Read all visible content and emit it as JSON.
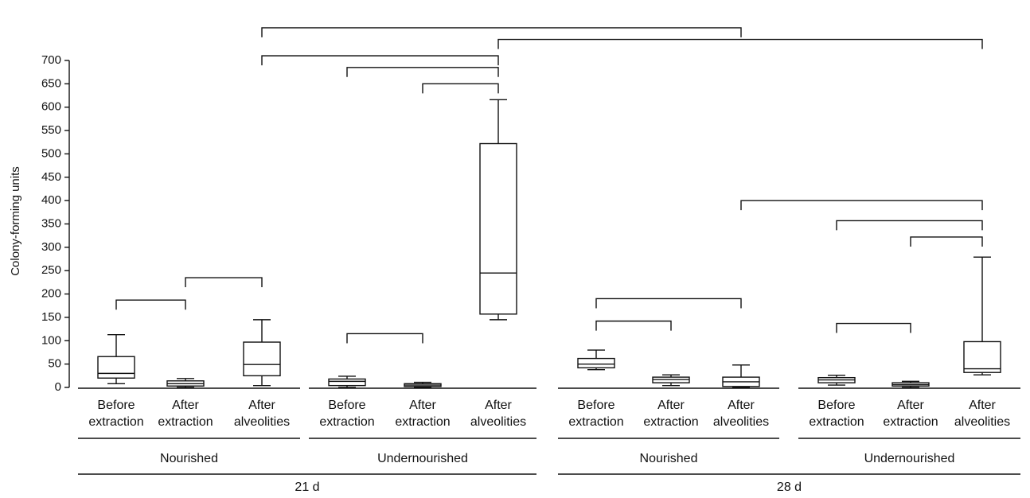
{
  "chart_data": {
    "type": "box",
    "ylabel": "Colony-forming units",
    "ylim": [
      0,
      700
    ],
    "yticks": [
      0,
      50,
      100,
      150,
      200,
      250,
      300,
      350,
      400,
      450,
      500,
      550,
      600,
      650,
      700
    ],
    "grid": false,
    "panels": [
      {
        "time": "21 d",
        "groups": [
          {
            "group": "Nourished",
            "boxes": [
              {
                "category": [
                  "Before",
                  "extraction"
                ],
                "min": 8,
                "q1": 20,
                "median": 30,
                "q3": 66,
                "max": 113
              },
              {
                "category": [
                  "After",
                  "extraction"
                ],
                "min": 0,
                "q1": 3,
                "median": 8,
                "q3": 14,
                "max": 19
              },
              {
                "category": [
                  "After",
                  "alveolities"
                ],
                "min": 4,
                "q1": 25,
                "median": 49,
                "q3": 97,
                "max": 145
              }
            ]
          },
          {
            "group": "Undernourished",
            "boxes": [
              {
                "category": [
                  "Before",
                  "extraction"
                ],
                "min": 0,
                "q1": 4,
                "median": 13,
                "q3": 18,
                "max": 24
              },
              {
                "category": [
                  "After",
                  "extraction"
                ],
                "min": 0,
                "q1": 2,
                "median": 5,
                "q3": 8,
                "max": 11
              },
              {
                "category": [
                  "After",
                  "alveolities"
                ],
                "min": 145,
                "q1": 157,
                "median": 245,
                "q3": 522,
                "max": 616
              }
            ]
          }
        ]
      },
      {
        "time": "28 d",
        "groups": [
          {
            "group": "Nourished",
            "boxes": [
              {
                "category": [
                  "Before",
                  "extraction"
                ],
                "min": 38,
                "q1": 42,
                "median": 50,
                "q3": 62,
                "max": 80
              },
              {
                "category": [
                  "After",
                  "extraction"
                ],
                "min": 4,
                "q1": 10,
                "median": 17,
                "q3": 22,
                "max": 27
              },
              {
                "category": [
                  "After",
                  "alveolities"
                ],
                "min": 0,
                "q1": 2,
                "median": 12,
                "q3": 22,
                "max": 48
              }
            ]
          },
          {
            "group": "Undernourished",
            "boxes": [
              {
                "category": [
                  "Before",
                  "extraction"
                ],
                "min": 5,
                "q1": 10,
                "median": 16,
                "q3": 21,
                "max": 26
              },
              {
                "category": [
                  "After",
                  "extraction"
                ],
                "min": 0,
                "q1": 3,
                "median": 6,
                "q3": 10,
                "max": 13
              },
              {
                "category": [
                  "After",
                  "alveolities"
                ],
                "min": 27,
                "q1": 32,
                "median": 40,
                "q3": 98,
                "max": 279
              }
            ]
          }
        ]
      }
    ],
    "comparisons": [
      {
        "from": 0,
        "to": 1,
        "y": 187
      },
      {
        "from": 1,
        "to": 2,
        "y": 235
      },
      {
        "from": 3,
        "to": 4,
        "y": 115
      },
      {
        "from": 4,
        "to": 5,
        "y": 650
      },
      {
        "from": 3,
        "to": 5,
        "y": 685
      },
      {
        "from": 2,
        "to": 5,
        "y": 710
      },
      {
        "from": 6,
        "to": 7,
        "y": 142
      },
      {
        "from": 6,
        "to": 8,
        "y": 190
      },
      {
        "from": 9,
        "to": 10,
        "y": 137
      },
      {
        "from": 10,
        "to": 11,
        "y": 322
      },
      {
        "from": 9,
        "to": 11,
        "y": 357
      },
      {
        "from": 8,
        "to": 11,
        "y": 400
      },
      {
        "from": 5,
        "to": 11,
        "y": 745
      },
      {
        "from": 2,
        "to": 8,
        "y": 770
      }
    ]
  }
}
